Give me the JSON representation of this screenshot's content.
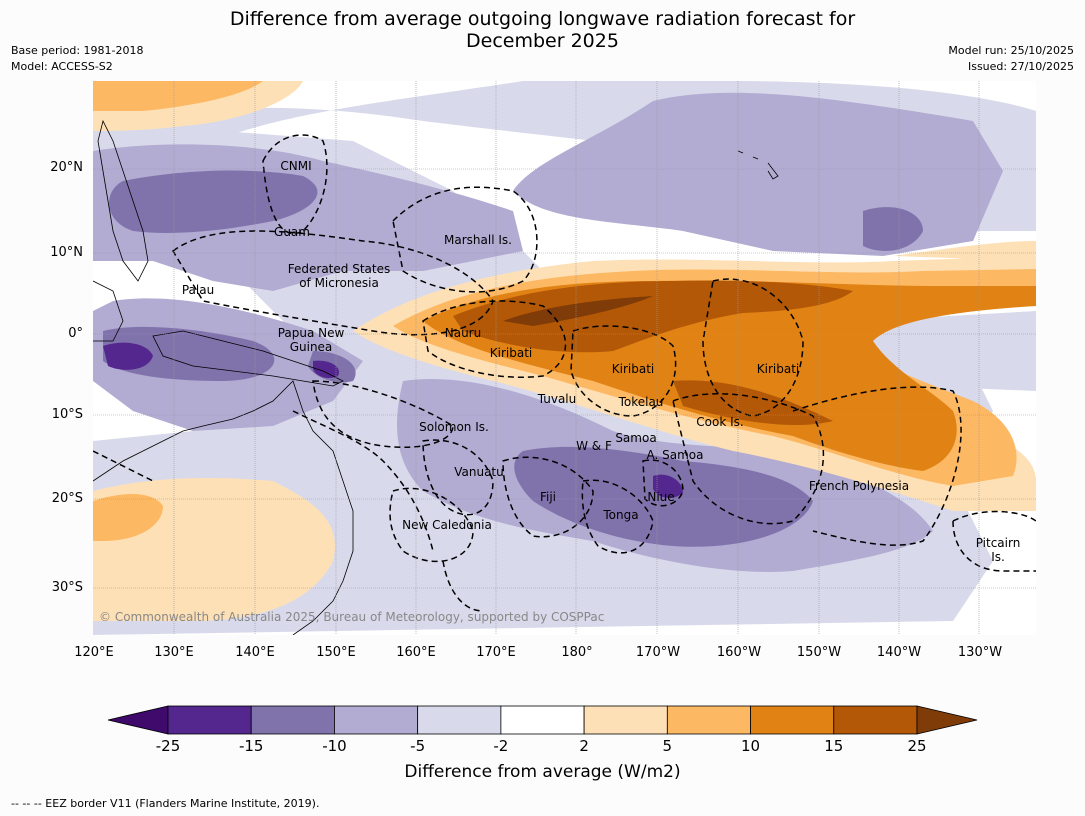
{
  "title_line1": "Difference from average outgoing longwave radiation forecast for",
  "title_line2": "December 2025",
  "base_period": "Base period: 1981-2018",
  "model": "Model: ACCESS-S2",
  "model_run": "Model run: 25/10/2025",
  "issued": "Issued: 27/10/2025",
  "copyright": "© Commonwealth of Australia 2025, Bureau of Meteorology, supported by COSPPac",
  "lat_labels": [
    "20°N",
    "10°N",
    "0°",
    "10°S",
    "20°S",
    "30°S"
  ],
  "lon_labels": [
    "120°E",
    "130°E",
    "140°E",
    "150°E",
    "160°E",
    "170°E",
    "180°",
    "170°W",
    "160°W",
    "150°W",
    "140°W",
    "130°W"
  ],
  "places": {
    "cnmi": "CNMI",
    "guam": "Guam",
    "marshall": "Marshall Is.",
    "fsm1": "Federated States",
    "fsm2": "of Micronesia",
    "palau": "Palau",
    "png1": "Papua New",
    "png2": "Guinea",
    "nauru": "Nauru",
    "kiribati_w": "Kiribati",
    "kiribati_c": "Kiribati",
    "kiribati_e": "Kiribati",
    "tuvalu": "Tuvalu",
    "tokelau": "Tokelau",
    "cook": "Cook Is.",
    "solomon": "Solomon Is.",
    "wf": "W & F",
    "samoa": "Samoa",
    "asamoa": "A. Samoa",
    "vanuatu": "Vanuatu",
    "fiji": "Fiji",
    "niue": "Niue",
    "tonga": "Tonga",
    "frpoly": "French Polynesia",
    "newcal": "New Caledonia",
    "pitcairn1": "Pitcairn",
    "pitcairn2": "Is."
  },
  "colorbar": {
    "ticks": [
      "-25",
      "-15",
      "-10",
      "-5",
      "-2",
      "2",
      "5",
      "10",
      "15",
      "25"
    ],
    "colors": [
      "#3f0a6b",
      "#54278f",
      "#8073ac",
      "#b2abd2",
      "#d8daeb",
      "#ffffff",
      "#fee0b6",
      "#fdb863",
      "#e08214",
      "#b35806",
      "#7f3b08"
    ],
    "title": "Difference from average (W/m2)"
  },
  "footnote": "--  --  -- EEZ border V11 (Flanders Marine Institute, 2019)."
}
